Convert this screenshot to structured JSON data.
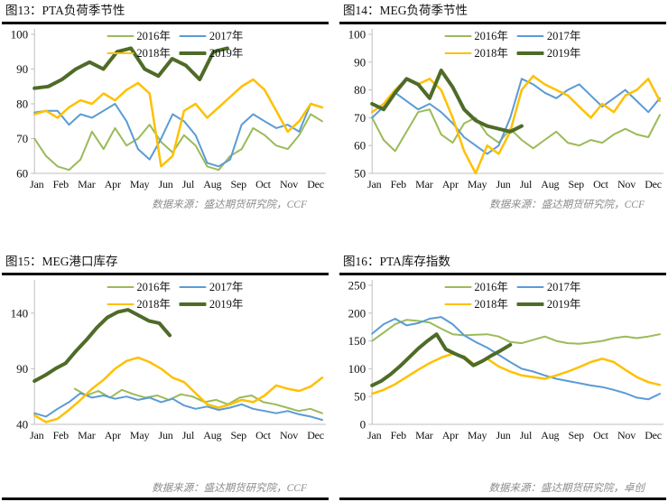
{
  "months": [
    "Jan",
    "Feb",
    "Mar",
    "Apr",
    "May",
    "Jun",
    "Jul",
    "Aug",
    "Sep",
    "Oct",
    "Nov",
    "Dec"
  ],
  "colors": {
    "series_2016": "#9BBB59",
    "series_2017": "#5B9BD5",
    "series_2018": "#FFC000",
    "series_2019": "#4E6B28",
    "axis": "#BFBFBF",
    "rule": "#000000",
    "source_text": "#8c8c8c"
  },
  "chart_data": [
    {
      "type": "line",
      "title": "图13：PTA负荷季节性",
      "source": "数据来源：盛达期货研究院，CCF",
      "ylim": [
        60,
        100
      ],
      "yticks": [
        60,
        70,
        80,
        90,
        100
      ],
      "x_categories": "months",
      "legend_position": "top-center",
      "series": [
        {
          "name": "2016年",
          "color": "#9BBB59",
          "width": 2,
          "span": [
            0,
            1
          ],
          "values": [
            70,
            65,
            62,
            61,
            64,
            72,
            67,
            73,
            68,
            70,
            74,
            69,
            66,
            71,
            68,
            62,
            61,
            65,
            67,
            73,
            71,
            68,
            67,
            71,
            77,
            75
          ]
        },
        {
          "name": "2017年",
          "color": "#5B9BD5",
          "width": 2,
          "span": [
            0,
            1
          ],
          "values": [
            77.5,
            78,
            78,
            74,
            77,
            76,
            78,
            80,
            75,
            67,
            64,
            70,
            77,
            75,
            71,
            63,
            62,
            64,
            74,
            77,
            75,
            73,
            74,
            72,
            80,
            79
          ]
        },
        {
          "name": "2018年",
          "color": "#FFC000",
          "width": 2.5,
          "span": [
            0,
            1
          ],
          "values": [
            77,
            78,
            76,
            79,
            81,
            80,
            83,
            81,
            84,
            86,
            83,
            62,
            65,
            78,
            80,
            76,
            79,
            82,
            85,
            87,
            84,
            78,
            72,
            75,
            80,
            79
          ]
        },
        {
          "name": "2019年",
          "color": "#4E6B28",
          "width": 4,
          "span": [
            0,
            0.67
          ],
          "values": [
            84.5,
            85,
            87,
            90,
            92,
            90,
            95,
            96,
            90,
            88,
            93,
            91,
            87,
            95,
            96
          ]
        }
      ]
    },
    {
      "type": "line",
      "title": "图14：MEG负荷季节性",
      "source": "数据来源：盛达期货研究院，CCF",
      "ylim": [
        50,
        100
      ],
      "yticks": [
        50,
        60,
        70,
        80,
        90,
        100
      ],
      "x_categories": "months",
      "legend_position": "top-center",
      "series": [
        {
          "name": "2016年",
          "color": "#9BBB59",
          "width": 2,
          "span": [
            0,
            1
          ],
          "values": [
            70,
            62,
            58,
            65,
            72,
            73,
            64,
            61,
            68,
            70,
            64,
            61,
            66,
            62,
            59,
            62,
            65,
            61,
            60,
            62,
            61,
            64,
            66,
            64,
            63,
            71
          ]
        },
        {
          "name": "2017年",
          "color": "#5B9BD5",
          "width": 2,
          "span": [
            0,
            1
          ],
          "values": [
            70,
            74,
            79,
            76,
            73,
            75,
            72,
            68,
            63,
            60,
            57,
            60,
            70,
            84,
            82,
            79,
            77,
            80,
            82,
            78,
            74,
            77,
            80,
            76,
            72,
            77
          ]
        },
        {
          "name": "2018年",
          "color": "#FFC000",
          "width": 2.5,
          "span": [
            0,
            1
          ],
          "values": [
            72,
            75,
            80,
            84,
            82,
            84,
            80,
            70,
            58,
            50,
            60,
            57,
            65,
            80,
            85,
            82,
            80,
            78,
            74,
            70,
            75,
            72,
            78,
            80,
            84,
            76
          ]
        },
        {
          "name": "2019年",
          "color": "#4E6B28",
          "width": 4,
          "span": [
            0,
            0.52
          ],
          "values": [
            75,
            73,
            79,
            84,
            82,
            77,
            87,
            81,
            73,
            69,
            67,
            66,
            65,
            67
          ]
        }
      ]
    },
    {
      "type": "line",
      "title": "图15：MEG港口库存",
      "source": "数据来源：盛达期货研究院，CCF",
      "ylim": [
        40,
        165
      ],
      "yticks": [
        40,
        90,
        140
      ],
      "x_categories": "months",
      "legend_position": "top-center",
      "series": [
        {
          "name": "2016年",
          "color": "#9BBB59",
          "width": 2,
          "span": [
            0.14,
            1
          ],
          "values": [
            72,
            66,
            70,
            64,
            71,
            67,
            64,
            66,
            62,
            67,
            65,
            60,
            62,
            58,
            64,
            66,
            60,
            58,
            55,
            52,
            54,
            50
          ]
        },
        {
          "name": "2017年",
          "color": "#5B9BD5",
          "width": 2,
          "span": [
            0,
            1
          ],
          "values": [
            50,
            47,
            54,
            60,
            68,
            64,
            66,
            63,
            65,
            62,
            64,
            60,
            63,
            57,
            54,
            56,
            53,
            55,
            58,
            54,
            52,
            50,
            52,
            49,
            47,
            44
          ]
        },
        {
          "name": "2018年",
          "color": "#FFC000",
          "width": 2.5,
          "span": [
            0,
            1
          ],
          "values": [
            48,
            42,
            45,
            53,
            62,
            72,
            80,
            90,
            97,
            100,
            96,
            90,
            82,
            78,
            68,
            58,
            55,
            58,
            62,
            60,
            66,
            75,
            72,
            70,
            74,
            82
          ]
        },
        {
          "name": "2019年",
          "color": "#4E6B28",
          "width": 4,
          "span": [
            0,
            0.47
          ],
          "values": [
            79,
            84,
            90,
            95,
            106,
            116,
            127,
            136,
            141,
            143,
            138,
            133,
            131,
            120
          ]
        }
      ]
    },
    {
      "type": "line",
      "title": "图16：PTA库存指数",
      "source": "数据来源：盛达期货研究院，卓创",
      "ylim": [
        0,
        250
      ],
      "yticks": [
        0,
        50,
        100,
        150,
        200,
        250
      ],
      "x_categories": "months",
      "legend_position": "top-center",
      "series": [
        {
          "name": "2016年",
          "color": "#9BBB59",
          "width": 2,
          "span": [
            0,
            1
          ],
          "values": [
            150,
            165,
            180,
            188,
            186,
            183,
            172,
            162,
            160,
            161,
            162,
            158,
            148,
            146,
            152,
            158,
            150,
            146,
            145,
            147,
            150,
            155,
            158,
            155,
            158,
            162
          ]
        },
        {
          "name": "2017年",
          "color": "#5B9BD5",
          "width": 2,
          "span": [
            0,
            1
          ],
          "values": [
            163,
            180,
            190,
            178,
            182,
            190,
            193,
            180,
            160,
            148,
            138,
            125,
            112,
            100,
            95,
            88,
            82,
            78,
            74,
            70,
            67,
            62,
            56,
            48,
            45,
            55
          ]
        },
        {
          "name": "2018年",
          "color": "#FFC000",
          "width": 2.5,
          "span": [
            0,
            1
          ],
          "values": [
            55,
            62,
            72,
            85,
            98,
            110,
            120,
            127,
            122,
            106,
            118,
            104,
            95,
            88,
            85,
            82,
            88,
            95,
            103,
            112,
            118,
            112,
            98,
            85,
            76,
            71
          ]
        },
        {
          "name": "2019年",
          "color": "#4E6B28",
          "width": 4,
          "span": [
            0,
            0.48
          ],
          "values": [
            70,
            78,
            90,
            104,
            120,
            136,
            150,
            162,
            135,
            127,
            120,
            106,
            114,
            124,
            133,
            143
          ]
        }
      ]
    }
  ]
}
